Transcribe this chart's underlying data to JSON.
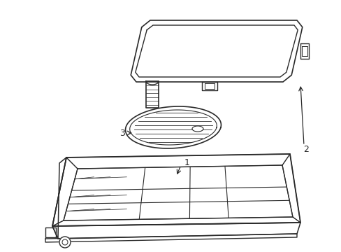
{
  "bg_color": "#ffffff",
  "line_color": "#2a2a2a",
  "line_width": 1.1,
  "labels": {
    "1": [
      0.555,
      0.415
    ],
    "2": [
      0.895,
      0.435
    ],
    "3": [
      0.195,
      0.535
    ]
  }
}
